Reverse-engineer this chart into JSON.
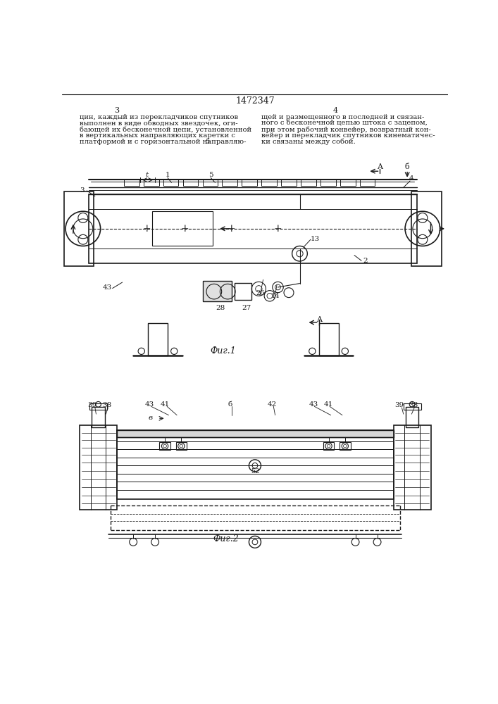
{
  "title": "1472347",
  "bg_color": "#ffffff",
  "line_color": "#1a1a1a",
  "text_color": "#1a1a1a",
  "left_lines": [
    "цин, каждый из перекладчиков спутников",
    "выполнен в виде обводных звездочек, оги-",
    "бающей их бесконечной цепи, установленной",
    "в вертикальных направляющих каретки с",
    "платформой и с горизонтальной направляю-"
  ],
  "right_lines": [
    "щей и размещенного в последней и связан-",
    "ного с бесконечной цепью штока с зацепом,",
    "при этом рабочий конвейер, возвратный кон-",
    "вейер и перекладчик спутников кинематичес-",
    "ки связаны между собой."
  ],
  "fig1_caption": "Фиг.1",
  "fig2_caption": "Фиг.2"
}
